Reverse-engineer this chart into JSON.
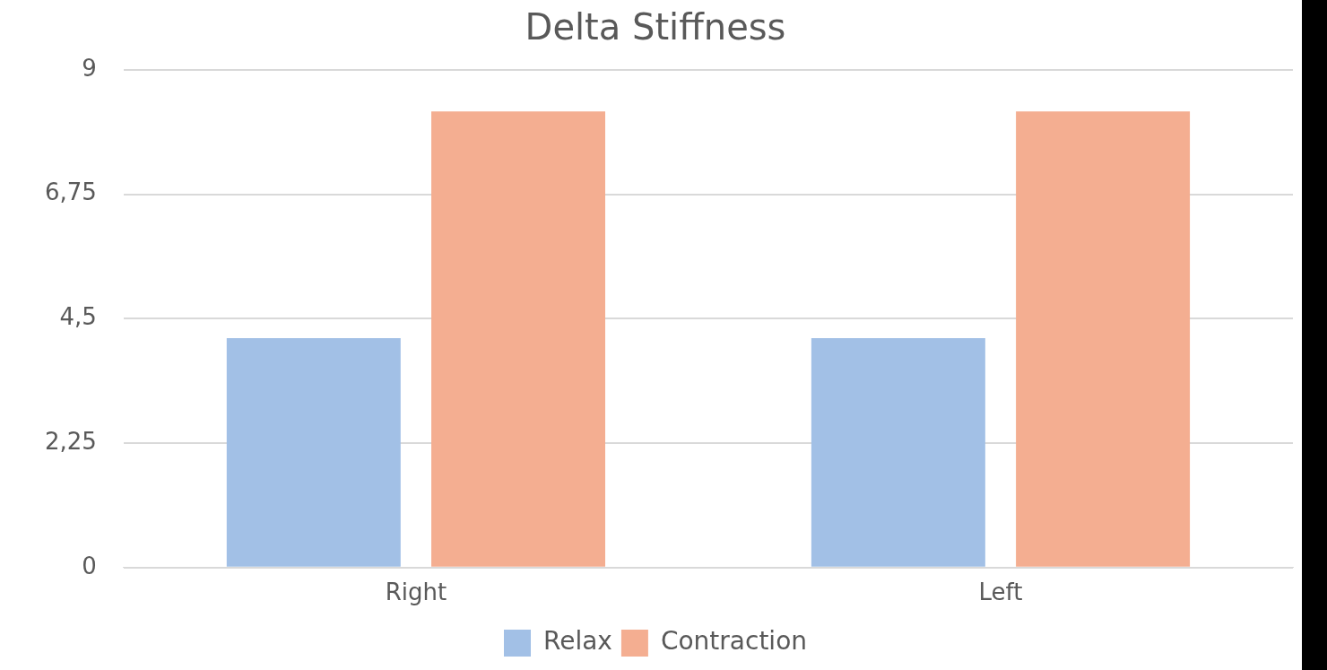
{
  "chart_data": {
    "type": "bar",
    "title": "Delta Stiffness",
    "categories": [
      "Right",
      "Left"
    ],
    "series": [
      {
        "name": "Relax",
        "color": "#a2c0e6",
        "values": [
          4.15,
          4.15
        ]
      },
      {
        "name": "Contraction",
        "color": "#f4ae91",
        "values": [
          8.25,
          8.25
        ]
      }
    ],
    "ylim": [
      0,
      9
    ],
    "yticks": [
      0,
      {
        "value": 2.25,
        "label": "2,25"
      },
      {
        "value": 4.5,
        "label": "4,5"
      },
      {
        "value": 6.75,
        "label": "6,75"
      },
      9
    ],
    "grid": "y",
    "legend": "bottom"
  }
}
